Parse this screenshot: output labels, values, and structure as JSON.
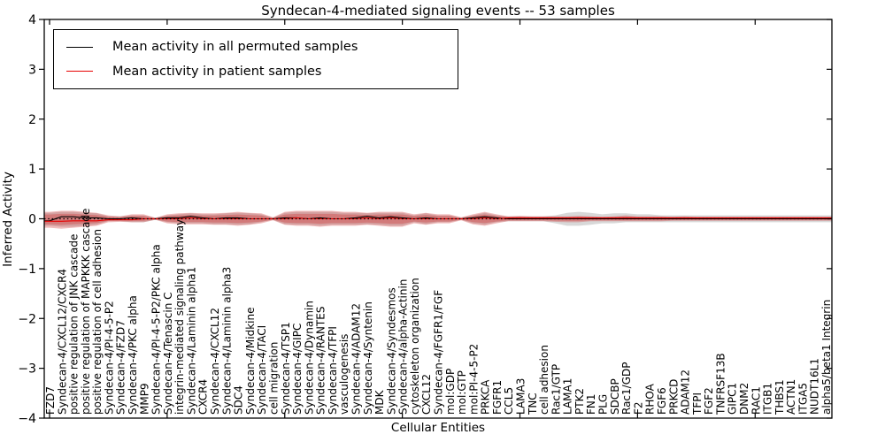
{
  "chart_data": {
    "type": "line",
    "title": "Syndecan-4-mediated signaling events -- 53 samples",
    "xlabel": "Cellular Entities",
    "ylabel": "Inferred Activity",
    "ylim": [
      -4,
      4
    ],
    "yticks": [
      4,
      3,
      2,
      1,
      0,
      -1,
      -2,
      -3,
      -4
    ],
    "grid": false,
    "legend_position": "upper left",
    "zero_line": {
      "value": 0,
      "style": "dotted",
      "color": "#000000"
    },
    "categories": [
      "FZD7",
      "Syndecan-4/CXCL12/CXCR4",
      "positive regulation of JNK cascade",
      "positive regulation of MAPKKK cascade",
      "positive regulation of cell adhesion",
      "Syndecan-4/PI-4-5-P2",
      "Syndecan-4/FZD7",
      "Syndecan-4/PKC alpha",
      "MMP9",
      "Syndecan-4/PI-4-5-P2/PKC alpha",
      "Syndecan-4/Tenascin C",
      "integrin-mediated signaling pathway",
      "Syndecan-4/Laminin alpha1",
      "CXCR4",
      "Syndecan-4/CXCL12",
      "Syndecan-4/Laminin alpha3",
      "SDC4",
      "Syndecan-4/Midkine",
      "Syndecan-4/TACI",
      "cell migration",
      "Syndecan-4/TSP1",
      "Syndecan-4/GIPC",
      "Syndecan-4/Dynamin",
      "Syndecan-4/RANTES",
      "Syndecan-4/TFPI",
      "vasculogenesis",
      "Syndecan-4/ADAM12",
      "Syndecan-4/Syntenin",
      "MDK",
      "Syndecan-4/Syndesmos",
      "Syndecan-4/alpha-Actinin",
      "cytoskeleton organization",
      "CXCL12",
      "Syndecan-4/FGFR1/FGF",
      "mol:GDP",
      "mol:GTP",
      "mol:PI-4-5-P2",
      "PRKCA",
      "FGFR1",
      "CCL5",
      "LAMA3",
      "TNC",
      "cell adhesion",
      "Rac1/GTP",
      "LAMA1",
      "PTK2",
      "FN1",
      "PLG",
      "SDCBP",
      "Rac1/GDP",
      "F2",
      "RHOA",
      "FGF6",
      "PRKCD",
      "ADAM12",
      "TFPI",
      "FGF2",
      "TNFRSF13B",
      "GIPC1",
      "DNM2",
      "RAC1",
      "ITGB1",
      "THBS1",
      "ACTN1",
      "ITGA5",
      "NUDT16L1",
      "alpha5/beta1 Integrin"
    ],
    "series": [
      {
        "name": "Mean activity in all permuted samples",
        "color": "#000000",
        "values": [
          -0.04,
          0.04,
          0.04,
          0.02,
          0.02,
          0,
          0,
          0.02,
          0,
          0,
          0.02,
          0.02,
          0.05,
          0.02,
          0,
          0.02,
          0.02,
          0,
          0,
          0,
          0.02,
          0.02,
          0,
          0.02,
          0,
          0,
          0.02,
          0.05,
          0.02,
          0.04,
          0.02,
          0,
          0.02,
          0,
          0,
          0,
          0.02,
          0.04,
          0.02,
          0,
          0,
          0,
          0,
          0,
          0,
          0,
          0,
          0,
          0,
          0,
          0,
          0,
          0,
          0,
          0,
          0,
          0,
          0,
          0,
          0,
          0,
          0,
          0,
          0,
          0,
          0,
          0
        ]
      },
      {
        "name": "Mean activity in patient samples",
        "color": "#e60000",
        "values": [
          -0.05,
          -0.05,
          -0.04,
          -0.04,
          -0.04,
          -0.02,
          -0.02,
          -0.02,
          0,
          0,
          0,
          0,
          0.02,
          0,
          0,
          0,
          0,
          0,
          0,
          0,
          0,
          0.02,
          0,
          0,
          0,
          0,
          0,
          0.02,
          0,
          0.02,
          0,
          0,
          0,
          0,
          0,
          0,
          0,
          0.02,
          0,
          0.02,
          0.02,
          0.02,
          0.02,
          0.02,
          0.02,
          0.02,
          0.02,
          0.02,
          0.02,
          0.02,
          0.02,
          0.02,
          0.02,
          0.02,
          0.02,
          0.02,
          0.02,
          0.02,
          0.02,
          0.02,
          0.02,
          0.02,
          0.02,
          0.02,
          0.02,
          0.02,
          0.02
        ]
      }
    ],
    "bands": [
      {
        "name": "permuted-samples-std-band",
        "color": "#999999",
        "layers": [
          {
            "opacity": 0.38,
            "scale": 1
          }
        ],
        "half_upper": [
          0.12,
          0.14,
          0.14,
          0.12,
          0.11,
          0.05,
          0.05,
          0.07,
          0.07,
          0.02,
          0.07,
          0.09,
          0.11,
          0.09,
          0.09,
          0.11,
          0.12,
          0.11,
          0.09,
          0.02,
          0.12,
          0.14,
          0.14,
          0.14,
          0.14,
          0.12,
          0.12,
          0.11,
          0.12,
          0.12,
          0.12,
          0.07,
          0.11,
          0.07,
          0.07,
          0.02,
          0.07,
          0.12,
          0.07,
          0.05,
          0.05,
          0.05,
          0.05,
          0.07,
          0.12,
          0.14,
          0.12,
          0.09,
          0.11,
          0.11,
          0.09,
          0.09,
          0.07,
          0.07,
          0.07,
          0.07,
          0.07,
          0.07,
          0.07,
          0.07,
          0.07,
          0.07,
          0.07,
          0.07,
          0.07,
          0.07,
          0.07
        ],
        "half_lower": [
          0.14,
          0.16,
          0.16,
          0.14,
          0.12,
          0.05,
          0.05,
          0.07,
          0.07,
          0.02,
          0.07,
          0.09,
          0.09,
          0.09,
          0.11,
          0.11,
          0.12,
          0.11,
          0.07,
          0.02,
          0.11,
          0.12,
          0.12,
          0.14,
          0.12,
          0.12,
          0.12,
          0.11,
          0.12,
          0.14,
          0.14,
          0.07,
          0.11,
          0.07,
          0.07,
          0.02,
          0.09,
          0.12,
          0.07,
          0.05,
          0.05,
          0.05,
          0.05,
          0.09,
          0.14,
          0.14,
          0.12,
          0.09,
          0.09,
          0.07,
          0.07,
          0.07,
          0.07,
          0.07,
          0.07,
          0.07,
          0.07,
          0.07,
          0.07,
          0.07,
          0.07,
          0.07,
          0.07,
          0.07,
          0.07,
          0.07,
          0.07
        ]
      },
      {
        "name": "patient-samples-std-band",
        "color": "#cc2222",
        "layers": [
          {
            "opacity": 0.3,
            "scale": 1
          },
          {
            "opacity": 0.3,
            "scale": 0.62
          }
        ],
        "half_upper": [
          0.14,
          0.16,
          0.16,
          0.14,
          0.12,
          0.07,
          0.05,
          0.09,
          0.09,
          0.02,
          0.09,
          0.11,
          0.12,
          0.11,
          0.11,
          0.12,
          0.14,
          0.12,
          0.11,
          0.03,
          0.14,
          0.16,
          0.16,
          0.16,
          0.16,
          0.14,
          0.14,
          0.12,
          0.14,
          0.14,
          0.14,
          0.09,
          0.12,
          0.09,
          0.09,
          0.03,
          0.09,
          0.14,
          0.09,
          0.05,
          0.06,
          0.05,
          0.05,
          0.05,
          0.05,
          0.06,
          0.05,
          0.04,
          0.05,
          0.07,
          0.05,
          0.05,
          0.05,
          0.04,
          0.05,
          0.04,
          0.04,
          0.04,
          0.04,
          0.04,
          0.04,
          0.04,
          0.04,
          0.04,
          0.04,
          0.04,
          0.04
        ],
        "half_lower": [
          0.18,
          0.2,
          0.18,
          0.16,
          0.14,
          0.07,
          0.06,
          0.07,
          0.07,
          0.02,
          0.09,
          0.11,
          0.11,
          0.11,
          0.12,
          0.12,
          0.14,
          0.12,
          0.09,
          0.03,
          0.12,
          0.14,
          0.14,
          0.16,
          0.14,
          0.14,
          0.14,
          0.12,
          0.14,
          0.16,
          0.16,
          0.09,
          0.12,
          0.09,
          0.09,
          0.03,
          0.11,
          0.14,
          0.09,
          0.05,
          0.05,
          0.05,
          0.05,
          0.06,
          0.07,
          0.07,
          0.05,
          0.05,
          0.05,
          0.05,
          0.05,
          0.05,
          0.05,
          0.04,
          0.04,
          0.04,
          0.04,
          0.04,
          0.04,
          0.04,
          0.04,
          0.04,
          0.04,
          0.04,
          0.04,
          0.04,
          0.04
        ]
      }
    ]
  }
}
